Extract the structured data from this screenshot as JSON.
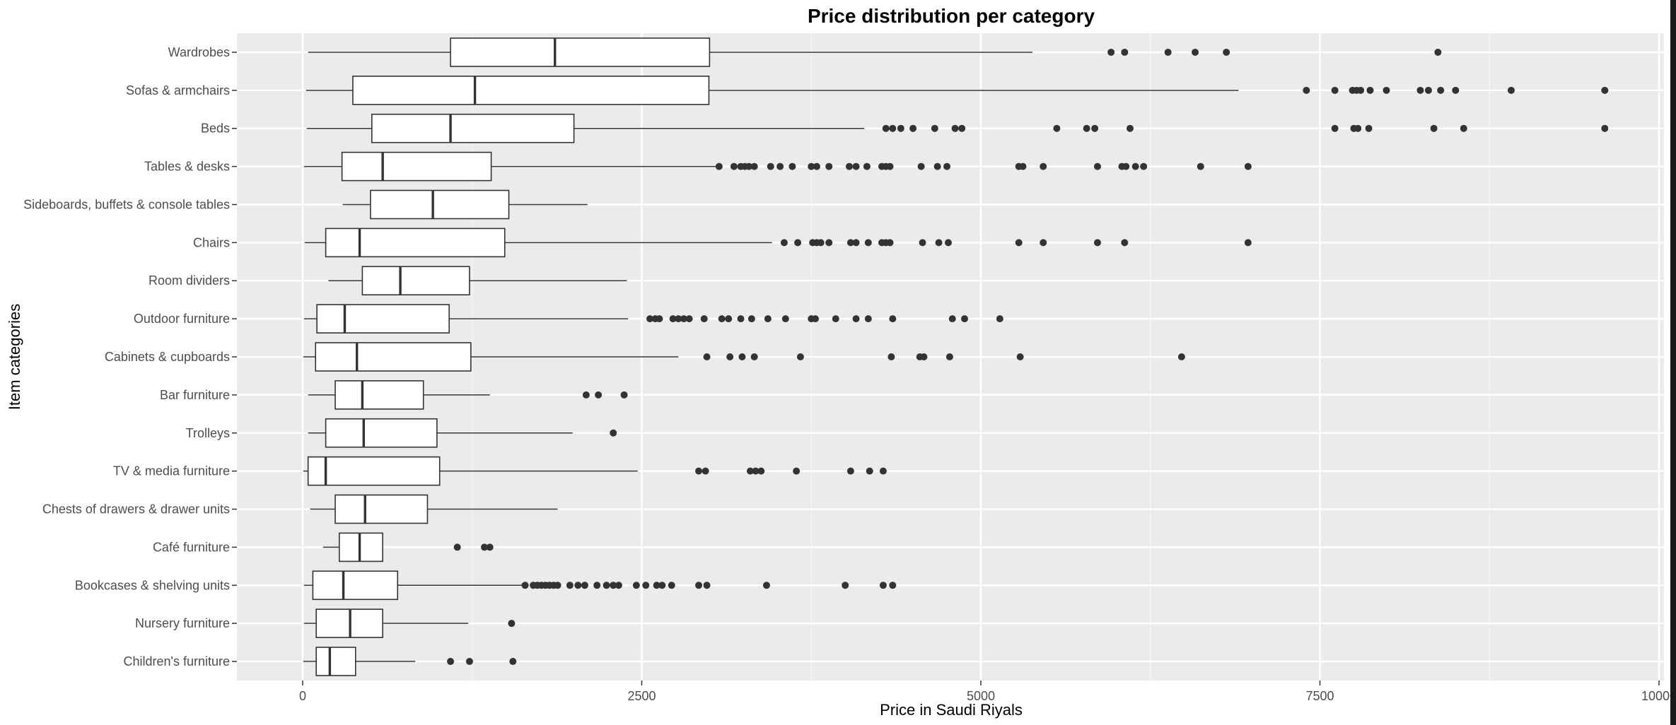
{
  "chart_data": {
    "type": "boxplot",
    "orientation": "horizontal",
    "title": "Price distribution per category",
    "xlabel": "Price in Saudi Riyals",
    "ylabel": "Item categories",
    "xlim": [
      -100,
      10000
    ],
    "xticks": [
      0,
      2500,
      5000,
      7500,
      10000
    ],
    "grid": true,
    "background": "#ebebeb",
    "categories": [
      {
        "name": "Wardrobes",
        "min": 40,
        "q1": 1090,
        "median": 1860,
        "q3": 3000,
        "max": 5380,
        "outliers": [
          5960,
          6060,
          6380,
          6580,
          6810,
          8370
        ]
      },
      {
        "name": "Sofas & armchairs",
        "min": 25,
        "q1": 370,
        "median": 1270,
        "q3": 2995,
        "max": 6900,
        "outliers": [
          7400,
          7610,
          7740,
          7770,
          7800,
          7870,
          7990,
          8240,
          8300,
          8390,
          8500,
          8910,
          9600
        ]
      },
      {
        "name": "Beds",
        "min": 30,
        "q1": 510,
        "median": 1090,
        "q3": 2000,
        "max": 4140,
        "outliers": [
          4300,
          4350,
          4410,
          4500,
          4660,
          4810,
          4860,
          5560,
          5780,
          5840,
          6100,
          7610,
          7750,
          7780,
          7860,
          8340,
          8560,
          9600
        ]
      },
      {
        "name": "Tables & desks",
        "min": 10,
        "q1": 290,
        "median": 590,
        "q3": 1390,
        "max": 3050,
        "outliers": [
          3070,
          3180,
          3230,
          3260,
          3290,
          3330,
          3450,
          3520,
          3610,
          3750,
          3790,
          3880,
          4030,
          4080,
          4160,
          4270,
          4300,
          4330,
          4560,
          4680,
          4750,
          5280,
          5310,
          5460,
          5860,
          6040,
          6070,
          6140,
          6200,
          6620,
          6970
        ]
      },
      {
        "name": "Sideboards, buffets & console tables",
        "min": 295,
        "q1": 500,
        "median": 960,
        "q3": 1520,
        "max": 2100,
        "outliers": []
      },
      {
        "name": "Chairs",
        "min": 15,
        "q1": 170,
        "median": 420,
        "q3": 1490,
        "max": 3460,
        "outliers": [
          3550,
          3650,
          3760,
          3790,
          3820,
          3880,
          4040,
          4080,
          4170,
          4270,
          4300,
          4330,
          4570,
          4690,
          4760,
          5280,
          5460,
          5860,
          6060,
          6970
        ]
      },
      {
        "name": "Room dividers",
        "min": 190,
        "q1": 440,
        "median": 720,
        "q3": 1230,
        "max": 2390,
        "outliers": []
      },
      {
        "name": "Outdoor furniture",
        "min": 10,
        "q1": 105,
        "median": 310,
        "q3": 1080,
        "max": 2400,
        "outliers": [
          2560,
          2600,
          2630,
          2730,
          2770,
          2810,
          2850,
          2960,
          3090,
          3140,
          3230,
          3310,
          3430,
          3560,
          3750,
          3780,
          3930,
          4080,
          4170,
          4350,
          4790,
          4880,
          5140
        ]
      },
      {
        "name": "Cabinets & cupboards",
        "min": 5,
        "q1": 95,
        "median": 400,
        "q3": 1240,
        "max": 2770,
        "outliers": [
          2980,
          3150,
          3240,
          3330,
          3670,
          4340,
          4550,
          4580,
          4770,
          5290,
          6480
        ]
      },
      {
        "name": "Bar furniture",
        "min": 40,
        "q1": 240,
        "median": 440,
        "q3": 890,
        "max": 1380,
        "outliers": [
          2090,
          2180,
          2370
        ]
      },
      {
        "name": "Trolleys",
        "min": 40,
        "q1": 170,
        "median": 450,
        "q3": 990,
        "max": 1990,
        "outliers": [
          2290
        ]
      },
      {
        "name": "TV & media furniture",
        "min": 5,
        "q1": 40,
        "median": 170,
        "q3": 1010,
        "max": 2470,
        "outliers": [
          2920,
          2970,
          3300,
          3340,
          3380,
          3640,
          4040,
          4180,
          4280
        ]
      },
      {
        "name": "Chests of drawers & drawer units",
        "min": 55,
        "q1": 240,
        "median": 460,
        "q3": 920,
        "max": 1880,
        "outliers": []
      },
      {
        "name": "Café furniture",
        "min": 150,
        "q1": 270,
        "median": 420,
        "q3": 590,
        "max": 590,
        "outliers": [
          1140,
          1340,
          1380
        ]
      },
      {
        "name": "Bookcases & shelving units",
        "min": 10,
        "q1": 75,
        "median": 300,
        "q3": 700,
        "max": 1630,
        "outliers": [
          1640,
          1700,
          1730,
          1760,
          1790,
          1820,
          1850,
          1880,
          1970,
          2030,
          2080,
          2170,
          2240,
          2290,
          2330,
          2460,
          2530,
          2610,
          2650,
          2720,
          2920,
          2980,
          3420,
          4000,
          4280,
          4350
        ]
      },
      {
        "name": "Nursery furniture",
        "min": 10,
        "q1": 100,
        "median": 350,
        "q3": 590,
        "max": 1220,
        "outliers": [
          1540
        ]
      },
      {
        "name": "Children's furniture",
        "min": 5,
        "q1": 100,
        "median": 200,
        "q3": 390,
        "max": 830,
        "outliers": [
          1090,
          1230,
          1550
        ]
      }
    ]
  }
}
